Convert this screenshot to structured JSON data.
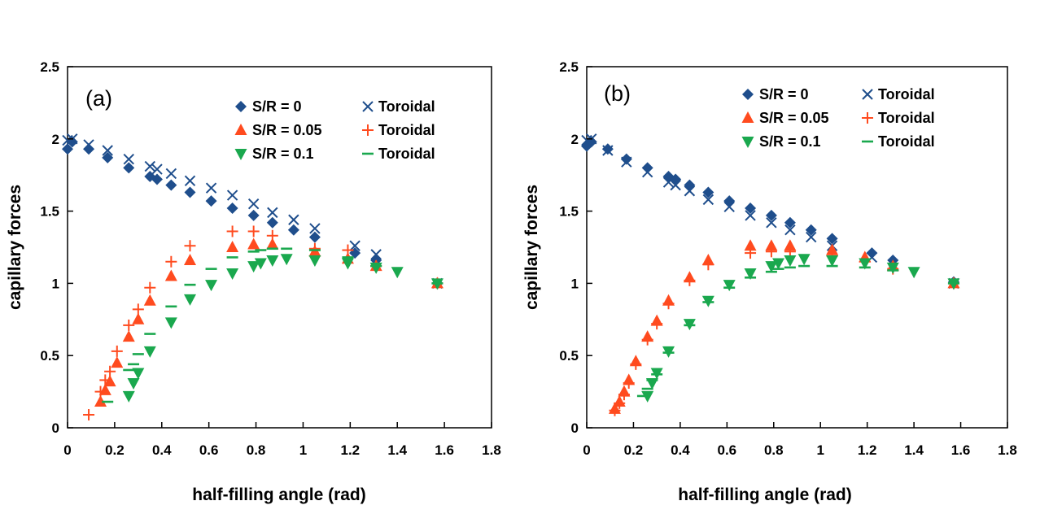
{
  "colors": {
    "blue": "#1f4e8c",
    "red": "#ff4b1f",
    "green": "#1aa84e",
    "axis": "#000000"
  },
  "chart_data": [
    {
      "type": "scatter",
      "panel_label": "(a)",
      "xlabel": "half-filling angle (rad)",
      "ylabel": "capillary forces",
      "xlim": [
        0,
        1.8
      ],
      "ylim": [
        0,
        2.5
      ],
      "xticks": [
        "0",
        "0.2",
        "0.4",
        "0.6",
        "0.8",
        "1",
        "1.2",
        "1.4",
        "1.6",
        "1.8"
      ],
      "yticks": [
        "0",
        "0.5",
        "1",
        "1.5",
        "2",
        "2.5"
      ],
      "grid": false,
      "legend_position": "top-right",
      "legend": [
        {
          "label": "S/R = 0",
          "marker": "diamond",
          "color": "blue"
        },
        {
          "label": "Toroidal",
          "marker": "x",
          "color": "blue"
        },
        {
          "label": "S/R = 0.05",
          "marker": "triangle-up",
          "color": "red"
        },
        {
          "label": "Toroidal",
          "marker": "plus",
          "color": "red"
        },
        {
          "label": "S/R = 0.1",
          "marker": "triangle-down",
          "color": "green"
        },
        {
          "label": "Toroidal",
          "marker": "dash",
          "color": "green"
        }
      ],
      "series": [
        {
          "name": "S/R = 0",
          "marker": "diamond",
          "color": "blue",
          "x": [
            0,
            0.02,
            0.09,
            0.17,
            0.26,
            0.35,
            0.38,
            0.44,
            0.52,
            0.61,
            0.7,
            0.79,
            0.87,
            0.96,
            1.05,
            1.22,
            1.31,
            1.57
          ],
          "y": [
            1.93,
            1.98,
            1.93,
            1.87,
            1.8,
            1.74,
            1.72,
            1.68,
            1.63,
            1.57,
            1.52,
            1.47,
            1.42,
            1.37,
            1.32,
            1.21,
            1.16,
            1.0
          ]
        },
        {
          "name": "Toroidal",
          "marker": "x",
          "color": "blue",
          "x": [
            0,
            0.02,
            0.09,
            0.17,
            0.26,
            0.35,
            0.38,
            0.44,
            0.52,
            0.61,
            0.7,
            0.79,
            0.87,
            0.96,
            1.05,
            1.22,
            1.31,
            1.57
          ],
          "y": [
            1.99,
            2.0,
            1.96,
            1.92,
            1.86,
            1.81,
            1.79,
            1.76,
            1.71,
            1.66,
            1.61,
            1.55,
            1.49,
            1.44,
            1.38,
            1.26,
            1.2,
            1.0
          ]
        },
        {
          "name": "S/R = 0.05",
          "marker": "triangle-up",
          "color": "red",
          "x": [
            0.14,
            0.16,
            0.18,
            0.21,
            0.26,
            0.3,
            0.35,
            0.44,
            0.52,
            0.7,
            0.79,
            0.87,
            1.05,
            1.19,
            1.31,
            1.57
          ],
          "y": [
            0.18,
            0.26,
            0.32,
            0.45,
            0.63,
            0.75,
            0.88,
            1.05,
            1.16,
            1.25,
            1.27,
            1.27,
            1.22,
            1.17,
            1.12,
            1.0
          ]
        },
        {
          "name": "Toroidal",
          "marker": "plus",
          "color": "red",
          "x": [
            0.09,
            0.14,
            0.16,
            0.18,
            0.21,
            0.26,
            0.3,
            0.35,
            0.44,
            0.52,
            0.7,
            0.79,
            0.87,
            1.05,
            1.19,
            1.31,
            1.57
          ],
          "y": [
            0.09,
            0.25,
            0.33,
            0.39,
            0.53,
            0.71,
            0.82,
            0.97,
            1.15,
            1.26,
            1.36,
            1.36,
            1.33,
            1.24,
            1.23,
            1.12,
            1.0
          ]
        },
        {
          "name": "S/R = 0.1",
          "marker": "triangle-down",
          "color": "green",
          "x": [
            0.26,
            0.28,
            0.3,
            0.35,
            0.44,
            0.52,
            0.61,
            0.7,
            0.79,
            0.82,
            0.87,
            0.93,
            1.05,
            1.19,
            1.31,
            1.4,
            1.57
          ],
          "y": [
            0.22,
            0.31,
            0.38,
            0.53,
            0.73,
            0.89,
            0.99,
            1.07,
            1.12,
            1.14,
            1.16,
            1.17,
            1.16,
            1.14,
            1.11,
            1.08,
            1.0
          ]
        },
        {
          "name": "Toroidal",
          "marker": "dash",
          "color": "green",
          "x": [
            0.17,
            0.26,
            0.28,
            0.3,
            0.35,
            0.44,
            0.52,
            0.61,
            0.7,
            0.79,
            0.82,
            0.87,
            0.93,
            1.05,
            1.19,
            1.31,
            1.57
          ],
          "y": [
            0.18,
            0.4,
            0.44,
            0.51,
            0.65,
            0.84,
            0.99,
            1.1,
            1.18,
            1.22,
            1.23,
            1.24,
            1.24,
            1.23,
            1.18,
            1.12,
            1.0
          ]
        }
      ]
    },
    {
      "type": "scatter",
      "panel_label": "(b)",
      "xlabel": "half-filling angle (rad)",
      "ylabel": "capillary forces",
      "xlim": [
        0,
        1.8
      ],
      "ylim": [
        0,
        2.5
      ],
      "xticks": [
        "0",
        "0.2",
        "0.4",
        "0.6",
        "0.8",
        "1",
        "1.2",
        "1.4",
        "1.6",
        "1.8"
      ],
      "yticks": [
        "0",
        "0.5",
        "1",
        "1.5",
        "2",
        "2.5"
      ],
      "grid": false,
      "legend_position": "top-right",
      "legend": [
        {
          "label": "S/R = 0",
          "marker": "diamond",
          "color": "blue"
        },
        {
          "label": "Toroidal",
          "marker": "x",
          "color": "blue"
        },
        {
          "label": "S/R = 0.05",
          "marker": "triangle-up",
          "color": "red"
        },
        {
          "label": "Toroidal",
          "marker": "plus",
          "color": "red"
        },
        {
          "label": "S/R = 0.1",
          "marker": "triangle-down",
          "color": "green"
        },
        {
          "label": "Toroidal",
          "marker": "dash",
          "color": "green"
        }
      ],
      "series": [
        {
          "name": "S/R = 0",
          "marker": "diamond",
          "color": "blue",
          "x": [
            0,
            0.02,
            0.09,
            0.17,
            0.26,
            0.35,
            0.38,
            0.44,
            0.52,
            0.61,
            0.7,
            0.79,
            0.87,
            0.96,
            1.05,
            1.22,
            1.31,
            1.57
          ],
          "y": [
            1.95,
            1.98,
            1.93,
            1.86,
            1.8,
            1.74,
            1.72,
            1.68,
            1.63,
            1.57,
            1.52,
            1.47,
            1.42,
            1.37,
            1.31,
            1.21,
            1.16,
            1.01
          ]
        },
        {
          "name": "Toroidal",
          "marker": "x",
          "color": "blue",
          "x": [
            0,
            0.02,
            0.09,
            0.17,
            0.26,
            0.35,
            0.38,
            0.44,
            0.52,
            0.61,
            0.7,
            0.79,
            0.87,
            0.96,
            1.05,
            1.22,
            1.31,
            1.57
          ],
          "y": [
            1.99,
            2.0,
            1.92,
            1.84,
            1.77,
            1.7,
            1.68,
            1.64,
            1.58,
            1.53,
            1.47,
            1.42,
            1.37,
            1.32,
            1.26,
            1.18,
            1.13,
            1.0
          ]
        },
        {
          "name": "S/R = 0.05",
          "marker": "triangle-up",
          "color": "red",
          "x": [
            0.12,
            0.14,
            0.16,
            0.18,
            0.21,
            0.26,
            0.3,
            0.35,
            0.44,
            0.52,
            0.7,
            0.79,
            0.87,
            1.05,
            1.19,
            1.31,
            1.57
          ],
          "y": [
            0.13,
            0.18,
            0.25,
            0.33,
            0.46,
            0.63,
            0.74,
            0.88,
            1.04,
            1.16,
            1.26,
            1.26,
            1.26,
            1.23,
            1.18,
            1.12,
            1.0
          ]
        },
        {
          "name": "Toroidal",
          "marker": "plus",
          "color": "red",
          "x": [
            0.12,
            0.14,
            0.16,
            0.18,
            0.21,
            0.26,
            0.3,
            0.35,
            0.44,
            0.52,
            0.7,
            0.79,
            0.87,
            1.05,
            1.19,
            1.31,
            1.57
          ],
          "y": [
            0.12,
            0.17,
            0.23,
            0.31,
            0.44,
            0.61,
            0.72,
            0.86,
            1.02,
            1.13,
            1.21,
            1.22,
            1.22,
            1.19,
            1.15,
            1.1,
            1.0
          ]
        },
        {
          "name": "S/R = 0.1",
          "marker": "triangle-down",
          "color": "green",
          "x": [
            0.26,
            0.28,
            0.3,
            0.35,
            0.44,
            0.52,
            0.61,
            0.7,
            0.79,
            0.82,
            0.87,
            0.93,
            1.05,
            1.19,
            1.31,
            1.4,
            1.57
          ],
          "y": [
            0.22,
            0.31,
            0.38,
            0.53,
            0.72,
            0.88,
            0.99,
            1.07,
            1.12,
            1.14,
            1.16,
            1.17,
            1.16,
            1.14,
            1.11,
            1.08,
            1.0
          ]
        },
        {
          "name": "Toroidal",
          "marker": "dash",
          "color": "green",
          "x": [
            0.24,
            0.26,
            0.28,
            0.3,
            0.35,
            0.44,
            0.52,
            0.61,
            0.7,
            0.79,
            0.82,
            0.87,
            0.93,
            1.05,
            1.19,
            1.31,
            1.57
          ],
          "y": [
            0.22,
            0.27,
            0.33,
            0.37,
            0.52,
            0.71,
            0.87,
            0.97,
            1.04,
            1.08,
            1.1,
            1.11,
            1.12,
            1.12,
            1.11,
            1.09,
            1.0
          ]
        }
      ]
    }
  ]
}
